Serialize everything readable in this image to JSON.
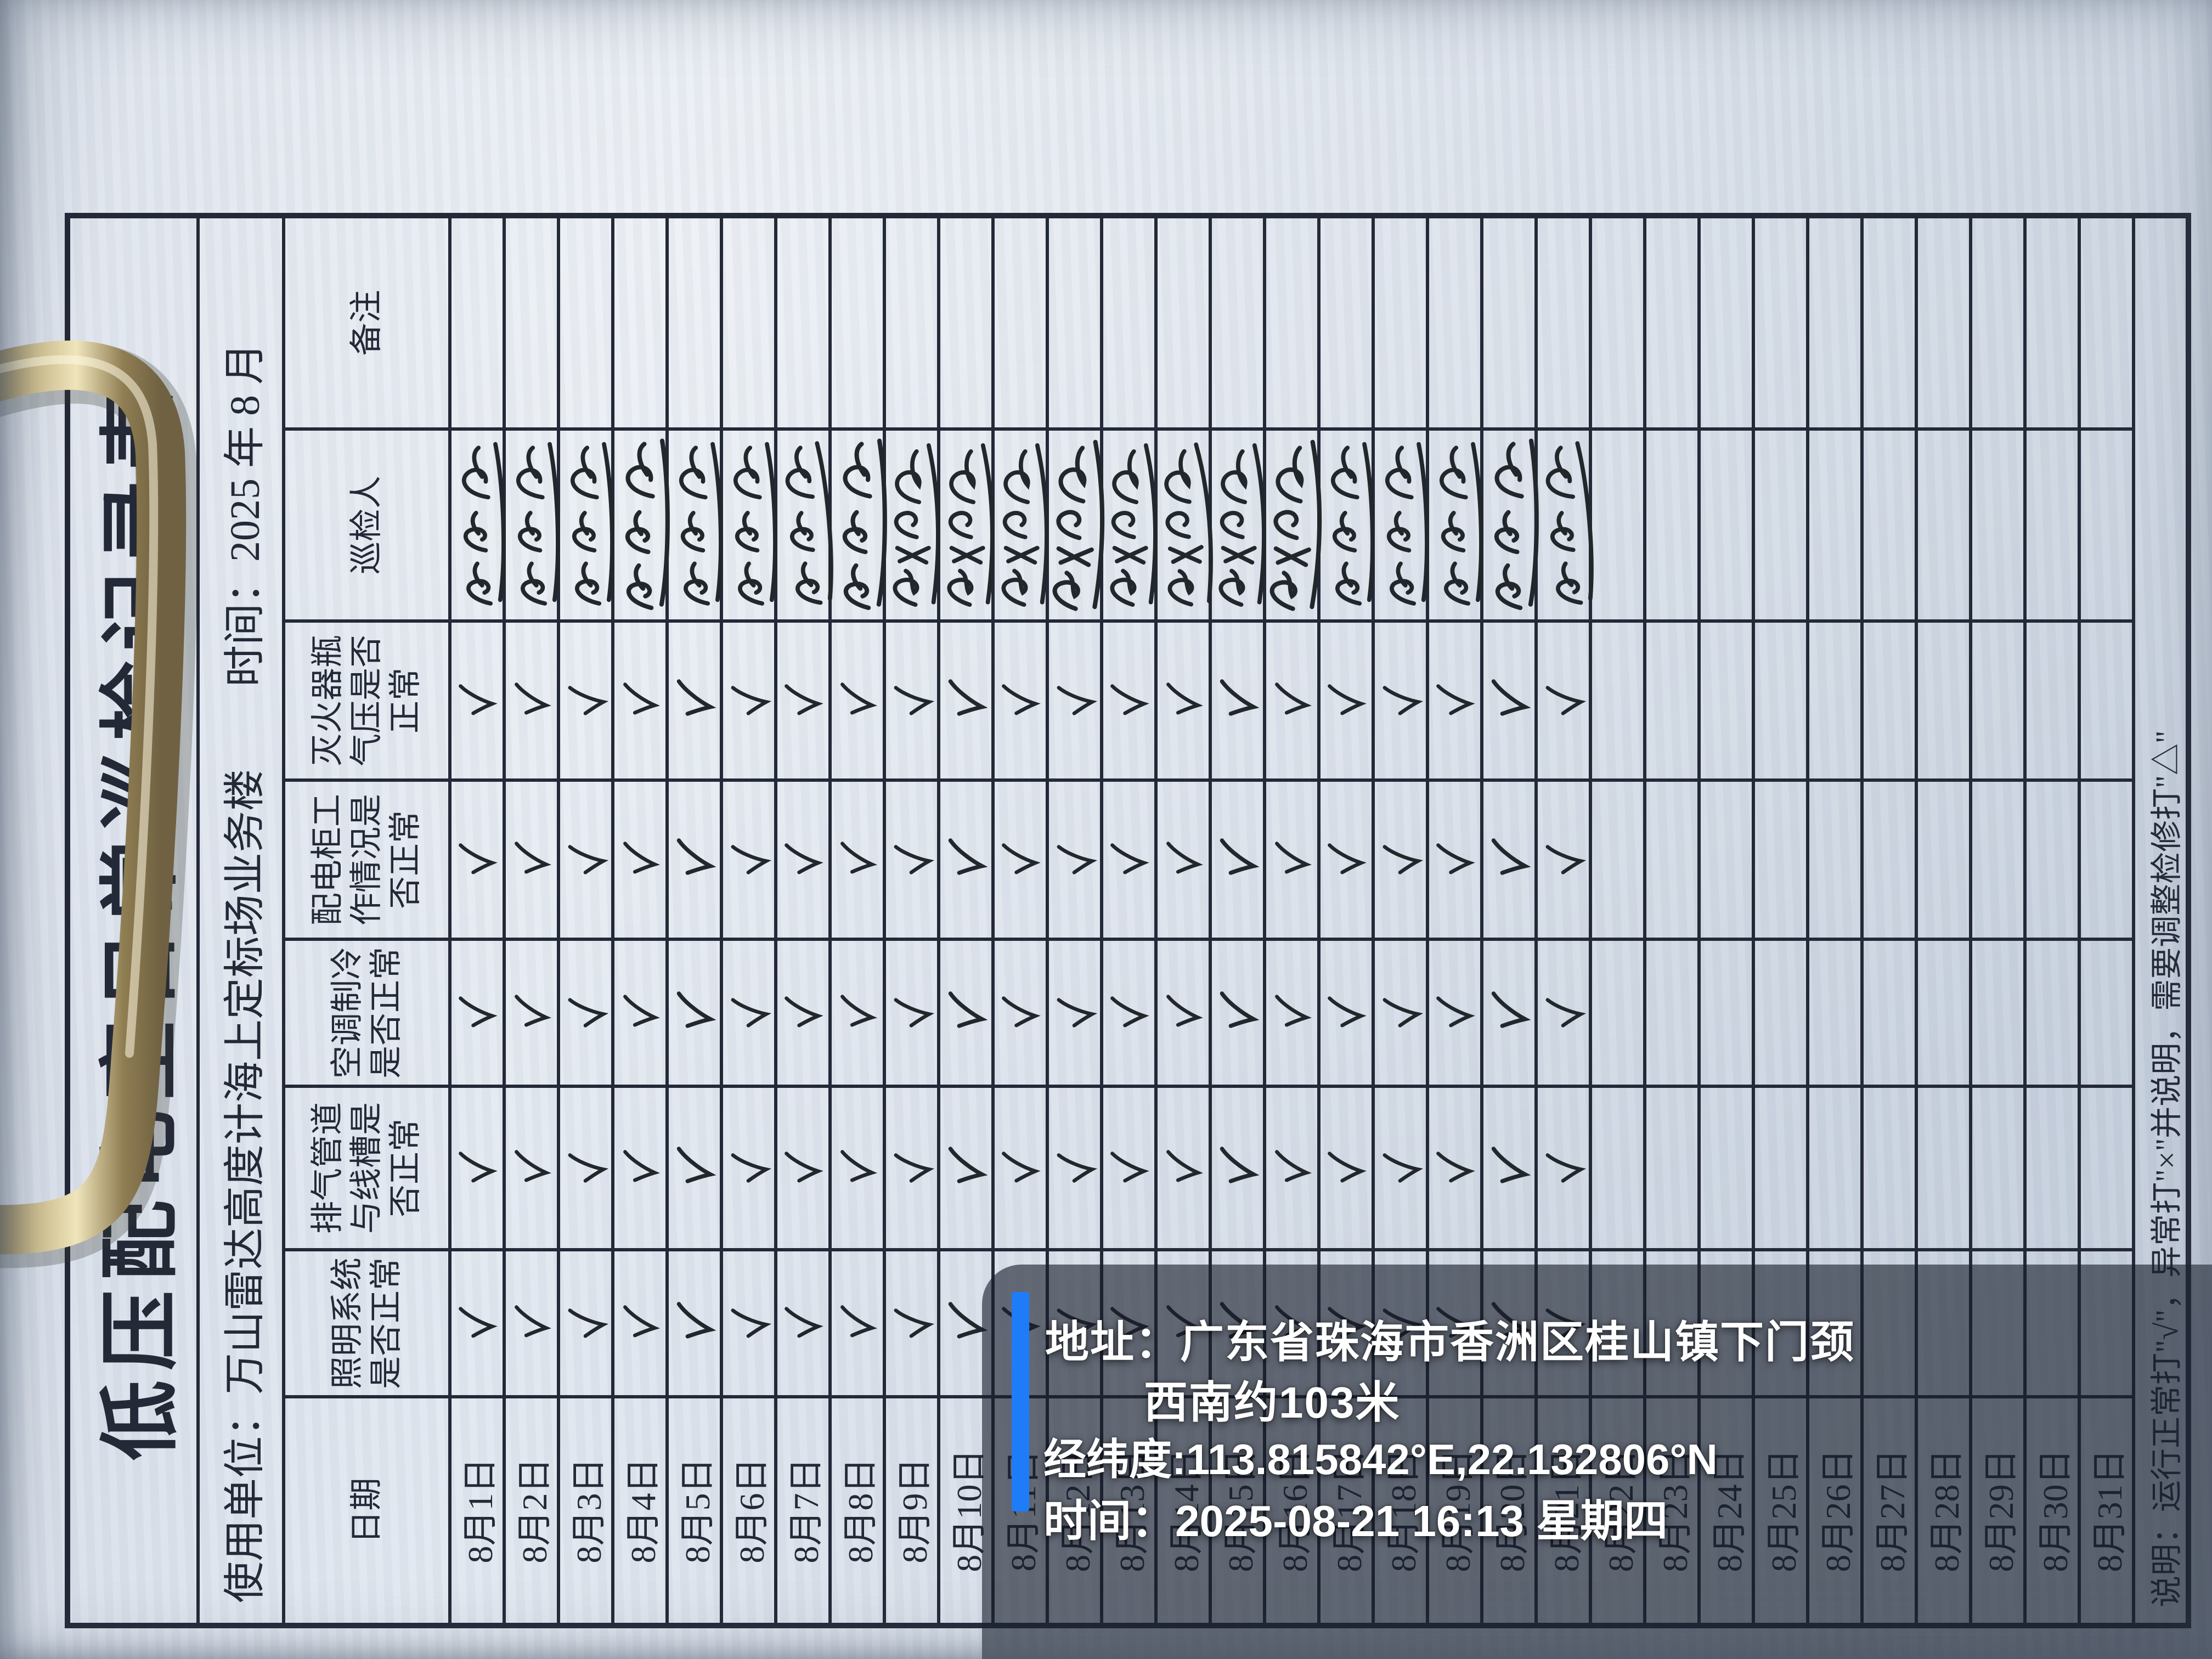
{
  "form": {
    "title": "低压配电室日常巡检记录表",
    "unit_label": "使用单位：万山雷达高度计海上定标场业务楼",
    "month_label": "时间：2025 年 8 月",
    "columns": [
      "日期",
      "照明系统是否正常",
      "排气管道与线槽是否正常",
      "空调制冷是否正常",
      "配电柜工作情况是否正常",
      "灭火器瓶气压是否正常",
      "巡检人",
      "备注"
    ],
    "check_symbol": "√",
    "note": "说明：运行正常打\"√\"，异常打\"×\"并说明，需要调整检修打\"△\"",
    "rows": [
      {
        "date": "8月1日",
        "checks": [
          "√",
          "√",
          "√",
          "√",
          "√"
        ],
        "inspector": "手写签名",
        "remark": ""
      },
      {
        "date": "8月2日",
        "checks": [
          "√",
          "√",
          "√",
          "√",
          "√"
        ],
        "inspector": "手写签名",
        "remark": ""
      },
      {
        "date": "8月3日",
        "checks": [
          "√",
          "√",
          "√",
          "√",
          "√"
        ],
        "inspector": "手写签名",
        "remark": ""
      },
      {
        "date": "8月4日",
        "checks": [
          "√",
          "√",
          "√",
          "√",
          "√"
        ],
        "inspector": "手写签名",
        "remark": ""
      },
      {
        "date": "8月5日",
        "checks": [
          "√",
          "√",
          "√",
          "√",
          "√"
        ],
        "inspector": "手写签名",
        "remark": ""
      },
      {
        "date": "8月6日",
        "checks": [
          "√",
          "√",
          "√",
          "√",
          "√"
        ],
        "inspector": "手写签名",
        "remark": ""
      },
      {
        "date": "8月7日",
        "checks": [
          "√",
          "√",
          "√",
          "√",
          "√"
        ],
        "inspector": "手写签名",
        "remark": ""
      },
      {
        "date": "8月8日",
        "checks": [
          "√",
          "√",
          "√",
          "√",
          "√"
        ],
        "inspector": "手写签名",
        "remark": ""
      },
      {
        "date": "8月9日",
        "checks": [
          "√",
          "√",
          "√",
          "√",
          "√"
        ],
        "inspector": "手写签名",
        "remark": ""
      },
      {
        "date": "8月10日",
        "checks": [
          "√",
          "√",
          "√",
          "√",
          "√"
        ],
        "inspector": "手写签名",
        "remark": ""
      },
      {
        "date": "8月11日",
        "checks": [
          "√",
          "√",
          "√",
          "√",
          "√"
        ],
        "inspector": "手写签名",
        "remark": ""
      },
      {
        "date": "8月12日",
        "checks": [
          "√",
          "√",
          "√",
          "√",
          "√"
        ],
        "inspector": "手写签名",
        "remark": ""
      },
      {
        "date": "8月13日",
        "checks": [
          "√",
          "√",
          "√",
          "√",
          "√"
        ],
        "inspector": "手写签名",
        "remark": ""
      },
      {
        "date": "8月14日",
        "checks": [
          "√",
          "√",
          "√",
          "√",
          "√"
        ],
        "inspector": "手写签名",
        "remark": ""
      },
      {
        "date": "8月15日",
        "checks": [
          "√",
          "√",
          "√",
          "√",
          "√"
        ],
        "inspector": "手写签名",
        "remark": ""
      },
      {
        "date": "8月16日",
        "checks": [
          "√",
          "√",
          "√",
          "√",
          "√"
        ],
        "inspector": "手写签名",
        "remark": ""
      },
      {
        "date": "8月17日",
        "checks": [
          "√",
          "√",
          "√",
          "√",
          "√"
        ],
        "inspector": "手写签名",
        "remark": ""
      },
      {
        "date": "8月18日",
        "checks": [
          "√",
          "√",
          "√",
          "√",
          "√"
        ],
        "inspector": "手写签名",
        "remark": ""
      },
      {
        "date": "8月19日",
        "checks": [
          "√",
          "√",
          "√",
          "√",
          "√"
        ],
        "inspector": "手写签名",
        "remark": ""
      },
      {
        "date": "8月20日",
        "checks": [
          "√",
          "√",
          "√",
          "√",
          "√"
        ],
        "inspector": "手写签名",
        "remark": ""
      },
      {
        "date": "8月21日",
        "checks": [
          "√",
          "√",
          "√",
          "√",
          "√"
        ],
        "inspector": "手写签名",
        "remark": ""
      },
      {
        "date": "8月22日",
        "checks": [],
        "inspector": "",
        "remark": ""
      },
      {
        "date": "8月23日",
        "checks": [],
        "inspector": "",
        "remark": ""
      },
      {
        "date": "8月24日",
        "checks": [],
        "inspector": "",
        "remark": ""
      },
      {
        "date": "8月25日",
        "checks": [],
        "inspector": "",
        "remark": ""
      },
      {
        "date": "8月26日",
        "checks": [],
        "inspector": "",
        "remark": ""
      },
      {
        "date": "8月27日",
        "checks": [],
        "inspector": "",
        "remark": ""
      },
      {
        "date": "8月28日",
        "checks": [],
        "inspector": "",
        "remark": ""
      },
      {
        "date": "8月29日",
        "checks": [],
        "inspector": "",
        "remark": ""
      },
      {
        "date": "8月30日",
        "checks": [],
        "inspector": "",
        "remark": ""
      },
      {
        "date": "8月31日",
        "checks": [],
        "inspector": "",
        "remark": ""
      }
    ]
  },
  "watermark": {
    "address_line1": "地址：广东省珠海市香洲区桂山镇下门颈",
    "address_line2": "西南约103米",
    "coordinates": "经纬度:113.815842°E,22.132806°N",
    "datetime": "时间：2025-08-21 16:13 星期四",
    "accent_color": "#1f7cf9"
  },
  "colors": {
    "paper": "#dbe2ec",
    "ink": "#242938",
    "handwriting": "#22272b",
    "watermark_panel": "rgba(24,30,44,0.62)",
    "watermark_text": "#ffffff",
    "clip_brass": "#cfc091"
  }
}
